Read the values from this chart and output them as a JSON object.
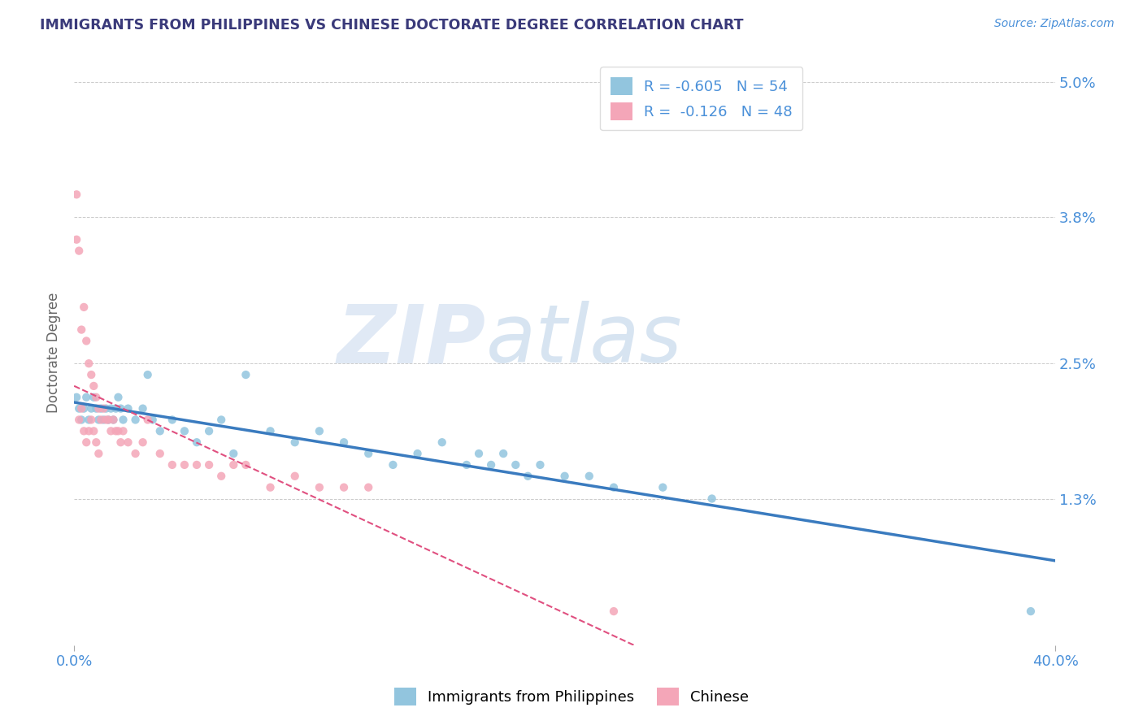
{
  "title": "IMMIGRANTS FROM PHILIPPINES VS CHINESE DOCTORATE DEGREE CORRELATION CHART",
  "source": "Source: ZipAtlas.com",
  "ylabel": "Doctorate Degree",
  "xlim": [
    0.0,
    0.4
  ],
  "ylim": [
    0.0,
    0.052
  ],
  "yticks": [
    0.013,
    0.025,
    0.038,
    0.05
  ],
  "ytick_labels": [
    "1.3%",
    "2.5%",
    "3.8%",
    "5.0%"
  ],
  "xticks": [
    0.0,
    0.4
  ],
  "xtick_labels": [
    "0.0%",
    "40.0%"
  ],
  "legend_label1": "Immigrants from Philippines",
  "legend_label2": "Chinese",
  "blue_color": "#92c5de",
  "pink_color": "#f4a6b8",
  "blue_line_color": "#3a7bbf",
  "pink_line_color": "#e05080",
  "title_color": "#3a3a7a",
  "axis_color": "#4a90d9",
  "blue_scatter_x": [
    0.001,
    0.002,
    0.003,
    0.004,
    0.005,
    0.006,
    0.007,
    0.008,
    0.009,
    0.01,
    0.011,
    0.012,
    0.013,
    0.014,
    0.015,
    0.016,
    0.017,
    0.018,
    0.019,
    0.02,
    0.022,
    0.025,
    0.028,
    0.03,
    0.032,
    0.035,
    0.04,
    0.045,
    0.05,
    0.055,
    0.06,
    0.065,
    0.07,
    0.08,
    0.09,
    0.1,
    0.11,
    0.12,
    0.13,
    0.14,
    0.15,
    0.16,
    0.165,
    0.17,
    0.175,
    0.18,
    0.185,
    0.19,
    0.2,
    0.21,
    0.22,
    0.24,
    0.26,
    0.39
  ],
  "blue_scatter_y": [
    0.022,
    0.021,
    0.02,
    0.021,
    0.022,
    0.02,
    0.021,
    0.022,
    0.021,
    0.02,
    0.021,
    0.02,
    0.021,
    0.02,
    0.021,
    0.02,
    0.021,
    0.022,
    0.021,
    0.02,
    0.021,
    0.02,
    0.021,
    0.024,
    0.02,
    0.019,
    0.02,
    0.019,
    0.018,
    0.019,
    0.02,
    0.017,
    0.024,
    0.019,
    0.018,
    0.019,
    0.018,
    0.017,
    0.016,
    0.017,
    0.018,
    0.016,
    0.017,
    0.016,
    0.017,
    0.016,
    0.015,
    0.016,
    0.015,
    0.015,
    0.014,
    0.014,
    0.013,
    0.003
  ],
  "pink_scatter_x": [
    0.001,
    0.001,
    0.002,
    0.002,
    0.003,
    0.003,
    0.004,
    0.004,
    0.005,
    0.005,
    0.006,
    0.006,
    0.007,
    0.007,
    0.008,
    0.008,
    0.009,
    0.009,
    0.01,
    0.01,
    0.011,
    0.012,
    0.013,
    0.014,
    0.015,
    0.016,
    0.017,
    0.018,
    0.019,
    0.02,
    0.022,
    0.025,
    0.028,
    0.03,
    0.035,
    0.04,
    0.045,
    0.05,
    0.055,
    0.06,
    0.065,
    0.07,
    0.08,
    0.09,
    0.1,
    0.11,
    0.12,
    0.22
  ],
  "pink_scatter_y": [
    0.04,
    0.036,
    0.035,
    0.02,
    0.028,
    0.021,
    0.03,
    0.019,
    0.027,
    0.018,
    0.025,
    0.019,
    0.024,
    0.02,
    0.023,
    0.019,
    0.022,
    0.018,
    0.021,
    0.017,
    0.02,
    0.021,
    0.02,
    0.02,
    0.019,
    0.02,
    0.019,
    0.019,
    0.018,
    0.019,
    0.018,
    0.017,
    0.018,
    0.02,
    0.017,
    0.016,
    0.016,
    0.016,
    0.016,
    0.015,
    0.016,
    0.016,
    0.014,
    0.015,
    0.014,
    0.014,
    0.014,
    0.003
  ]
}
